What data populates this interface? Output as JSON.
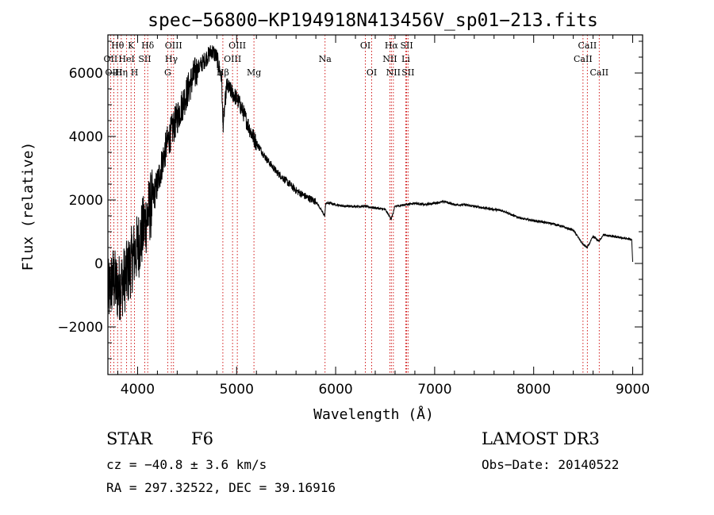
{
  "chart_data": {
    "type": "line",
    "title": "spec−56800−KP194918N413456V_sp01−213.fits",
    "xlabel": "Wavelength (Å)",
    "ylabel": "Flux (relative)",
    "xlim": [
      3700,
      9100
    ],
    "ylim": [
      -3500,
      7200
    ],
    "x_ticks": [
      4000,
      5000,
      6000,
      7000,
      8000,
      9000
    ],
    "x_tick_labels": [
      "4000",
      "5000",
      "6000",
      "7000",
      "8000",
      "9000"
    ],
    "y_ticks": [
      -2000,
      0,
      2000,
      4000,
      6000
    ],
    "y_tick_labels": [
      "−2000",
      "0",
      "2000",
      "4000",
      "6000"
    ],
    "grid": false,
    "series": [
      {
        "name": "spectrum",
        "x": [
          3700,
          3750,
          3800,
          3850,
          3900,
          3950,
          4000,
          4050,
          4100,
          4150,
          4200,
          4250,
          4300,
          4350,
          4400,
          4450,
          4500,
          4550,
          4600,
          4650,
          4700,
          4750,
          4800,
          4850,
          4861,
          4900,
          4950,
          5000,
          5050,
          5100,
          5150,
          5200,
          5300,
          5400,
          5500,
          5600,
          5700,
          5800,
          5890,
          5900,
          5950,
          6000,
          6100,
          6200,
          6300,
          6400,
          6500,
          6563,
          6600,
          6700,
          6800,
          6900,
          7000,
          7100,
          7200,
          7300,
          7400,
          7500,
          7600,
          7700,
          7800,
          7900,
          8000,
          8100,
          8200,
          8300,
          8400,
          8498,
          8542,
          8600,
          8662,
          8700,
          8800,
          8900,
          8990,
          9000
        ],
        "y": [
          -1000,
          -500,
          -800,
          -600,
          -300,
          200,
          500,
          1000,
          1500,
          2000,
          2500,
          3200,
          3800,
          4200,
          4600,
          5000,
          5400,
          5800,
          6100,
          6300,
          6500,
          6700,
          6500,
          5800,
          4300,
          5600,
          5400,
          5200,
          4900,
          4500,
          4100,
          3800,
          3300,
          2900,
          2600,
          2300,
          2100,
          1950,
          1500,
          1900,
          1900,
          1850,
          1800,
          1800,
          1800,
          1750,
          1700,
          1400,
          1800,
          1850,
          1900,
          1850,
          1900,
          1950,
          1850,
          1850,
          1800,
          1750,
          1700,
          1650,
          1500,
          1400,
          1350,
          1300,
          1250,
          1150,
          1050,
          600,
          500,
          850,
          700,
          900,
          850,
          800,
          750,
          50
        ]
      }
    ],
    "lines": [
      {
        "label": "Hθ",
        "wavelength": 3798,
        "row": 0
      },
      {
        "label": "OII",
        "wavelength": 3727,
        "row": 1
      },
      {
        "label": "OIII",
        "wavelength": 3760,
        "row": 2
      },
      {
        "label": "Hη",
        "wavelength": 3835,
        "row": 2
      },
      {
        "label": "HeI",
        "wavelength": 3889,
        "row": 1
      },
      {
        "label": "K",
        "wavelength": 3934,
        "row": 0
      },
      {
        "label": "H",
        "wavelength": 3969,
        "row": 2
      },
      {
        "label": "SII",
        "wavelength": 4072,
        "row": 1
      },
      {
        "label": "Hδ",
        "wavelength": 4102,
        "row": 0
      },
      {
        "label": "G",
        "wavelength": 4304,
        "row": 2
      },
      {
        "label": "Hγ",
        "wavelength": 4341,
        "row": 1
      },
      {
        "label": "OIII",
        "wavelength": 4363,
        "row": 0
      },
      {
        "label": "Hβ",
        "wavelength": 4861,
        "row": 2
      },
      {
        "label": "OIII",
        "wavelength": 4959,
        "row": 1
      },
      {
        "label": "OIII",
        "wavelength": 5007,
        "row": 0
      },
      {
        "label": "Mg",
        "wavelength": 5175,
        "row": 2
      },
      {
        "label": "Na",
        "wavelength": 5893,
        "row": 1
      },
      {
        "label": "OI",
        "wavelength": 6300,
        "row": 0
      },
      {
        "label": "OI",
        "wavelength": 6364,
        "row": 2
      },
      {
        "label": "NII",
        "wavelength": 6548,
        "row": 1
      },
      {
        "label": "Hα",
        "wavelength": 6563,
        "row": 0
      },
      {
        "label": "NII",
        "wavelength": 6583,
        "row": 2
      },
      {
        "label": "Li",
        "wavelength": 6708,
        "row": 1
      },
      {
        "label": "SII",
        "wavelength": 6717,
        "row": 0
      },
      {
        "label": "SII",
        "wavelength": 6731,
        "row": 2
      },
      {
        "label": "CaII",
        "wavelength": 8498,
        "row": 1
      },
      {
        "label": "CaII",
        "wavelength": 8542,
        "row": 0
      },
      {
        "label": "CaII",
        "wavelength": 8662,
        "row": 2
      }
    ]
  },
  "info": {
    "class": "STAR",
    "subclass": "F6",
    "cz": "cz = −40.8 ± 3.6 km/s",
    "coords": "RA = 297.32522, DEC =  39.16916",
    "survey": "LAMOST DR3",
    "obs_date": "Obs−Date: 20140522"
  },
  "colors": {
    "line_marker": "#cc0000",
    "spectrum": "#000000"
  }
}
